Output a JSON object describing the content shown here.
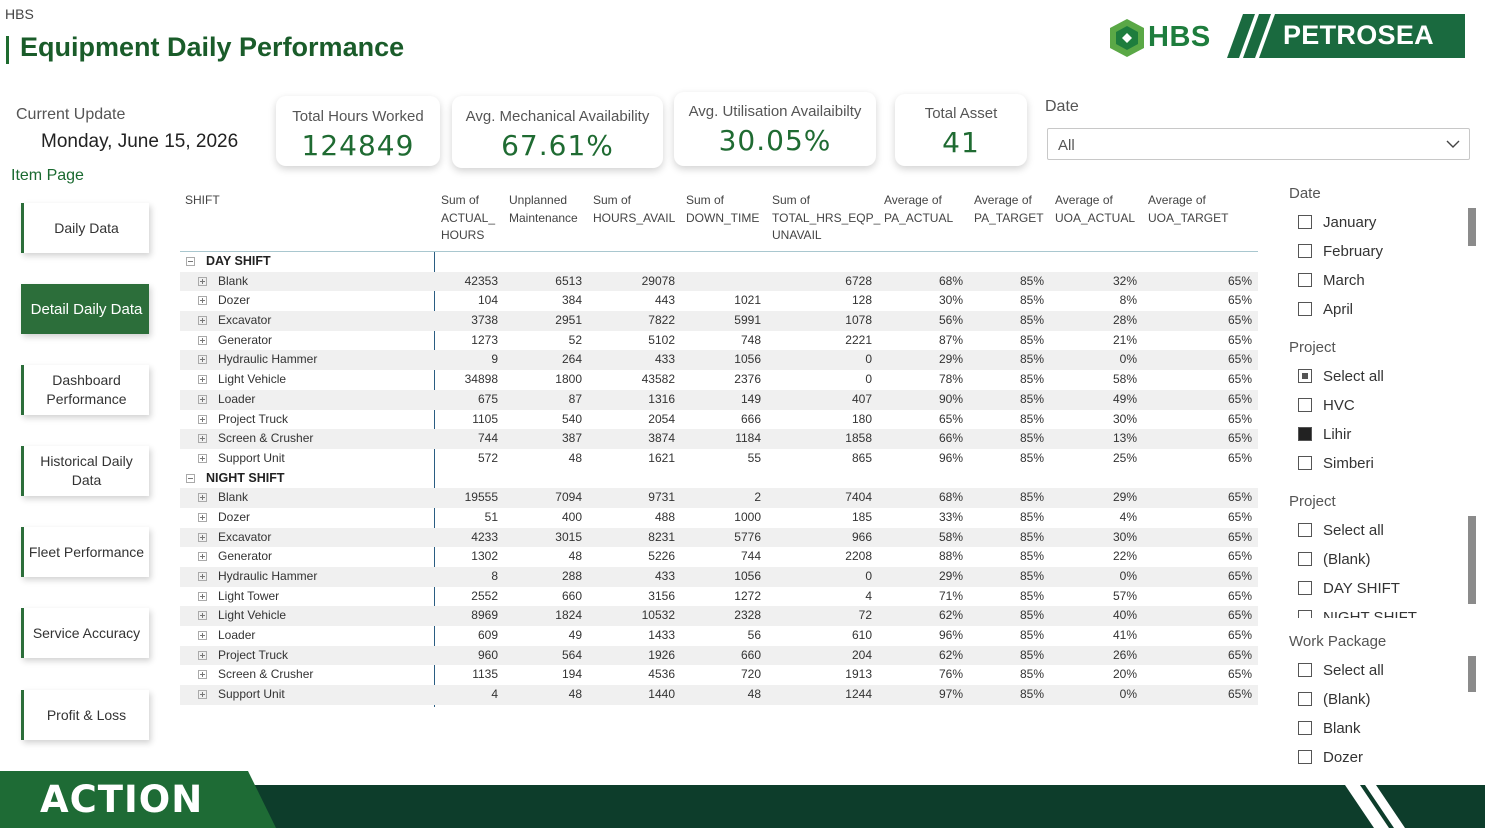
{
  "header": {
    "top_label": "HBS",
    "title": "Equipment Daily Performance",
    "logo_hbs": "HBS",
    "logo_petrosea": "PETROSEA",
    "footer_logo": "ACTION"
  },
  "current_update": {
    "label": "Current Update",
    "value": "Monday, June 15, 2026"
  },
  "kpis": [
    {
      "label": "Total Hours Worked",
      "value": "124849"
    },
    {
      "label": "Avg. Mechanical Availability",
      "value": "67.61%"
    },
    {
      "label": "Avg. Utilisation Availaibilty",
      "value": "30.05%"
    },
    {
      "label": "Total Asset",
      "value": "41"
    }
  ],
  "date_filter": {
    "label": "Date",
    "value": "All",
    "icon": "chevron-down-icon"
  },
  "nav": {
    "heading": "Item Page",
    "items": [
      {
        "label": "Daily Data"
      },
      {
        "label": "Detail Daily Data"
      },
      {
        "label": "Dashboard Performance"
      },
      {
        "label": "Historical Daily Data"
      },
      {
        "label": "Fleet Performance"
      },
      {
        "label": "Service Accuracy"
      },
      {
        "label": "Profit & Loss"
      }
    ]
  },
  "table": {
    "columns": [
      "SHIFT",
      "Sum of ACTUAL_ HOURS",
      "Unplanned Maintenance",
      "Sum of HOURS_AVAIL",
      "Sum of DOWN_TIME",
      "Sum of TOTAL_HRS_EQP_ UNAVAIL",
      "Average of PA_ACTUAL",
      "Average of PA_TARGET",
      "Average of UOA_ACTUAL",
      "Average of UOA_TARGET"
    ],
    "groups": [
      {
        "name": "DAY SHIFT",
        "rows": [
          [
            "Blank",
            "42353",
            "6513",
            "29078",
            "",
            "6728",
            "68%",
            "85%",
            "32%",
            "65%"
          ],
          [
            "Dozer",
            "104",
            "384",
            "443",
            "1021",
            "128",
            "30%",
            "85%",
            "8%",
            "65%"
          ],
          [
            "Excavator",
            "3738",
            "2951",
            "7822",
            "5991",
            "1078",
            "56%",
            "85%",
            "28%",
            "65%"
          ],
          [
            "Generator",
            "1273",
            "52",
            "5102",
            "748",
            "2221",
            "87%",
            "85%",
            "21%",
            "65%"
          ],
          [
            "Hydraulic Hammer",
            "9",
            "264",
            "433",
            "1056",
            "0",
            "29%",
            "85%",
            "0%",
            "65%"
          ],
          [
            "Light Vehicle",
            "34898",
            "1800",
            "43582",
            "2376",
            "0",
            "78%",
            "85%",
            "58%",
            "65%"
          ],
          [
            "Loader",
            "675",
            "87",
            "1316",
            "149",
            "407",
            "90%",
            "85%",
            "49%",
            "65%"
          ],
          [
            "Project Truck",
            "1105",
            "540",
            "2054",
            "666",
            "180",
            "65%",
            "85%",
            "30%",
            "65%"
          ],
          [
            "Screen & Crusher",
            "744",
            "387",
            "3874",
            "1184",
            "1858",
            "66%",
            "85%",
            "13%",
            "65%"
          ],
          [
            "Support Unit",
            "572",
            "48",
            "1621",
            "55",
            "865",
            "96%",
            "85%",
            "25%",
            "65%"
          ]
        ]
      },
      {
        "name": "NIGHT SHIFT",
        "rows": [
          [
            "Blank",
            "19555",
            "7094",
            "9731",
            "2",
            "7404",
            "68%",
            "85%",
            "29%",
            "65%"
          ],
          [
            "Dozer",
            "51",
            "400",
            "488",
            "1000",
            "185",
            "33%",
            "85%",
            "4%",
            "65%"
          ],
          [
            "Excavator",
            "4233",
            "3015",
            "8231",
            "5776",
            "966",
            "58%",
            "85%",
            "30%",
            "65%"
          ],
          [
            "Generator",
            "1302",
            "48",
            "5226",
            "744",
            "2208",
            "88%",
            "85%",
            "22%",
            "65%"
          ],
          [
            "Hydraulic Hammer",
            "8",
            "288",
            "433",
            "1056",
            "0",
            "29%",
            "85%",
            "0%",
            "65%"
          ],
          [
            "Light Tower",
            "2552",
            "660",
            "3156",
            "1272",
            "4",
            "71%",
            "85%",
            "57%",
            "65%"
          ],
          [
            "Light Vehicle",
            "8969",
            "1824",
            "10532",
            "2328",
            "72",
            "62%",
            "85%",
            "40%",
            "65%"
          ],
          [
            "Loader",
            "609",
            "49",
            "1433",
            "56",
            "610",
            "96%",
            "85%",
            "41%",
            "65%"
          ],
          [
            "Project Truck",
            "960",
            "564",
            "1926",
            "660",
            "204",
            "62%",
            "85%",
            "26%",
            "65%"
          ],
          [
            "Screen & Crusher",
            "1135",
            "194",
            "4536",
            "720",
            "1913",
            "76%",
            "85%",
            "20%",
            "65%"
          ],
          [
            "Support Unit",
            "4",
            "48",
            "1440",
            "48",
            "1244",
            "97%",
            "85%",
            "0%",
            "65%"
          ]
        ]
      }
    ]
  },
  "slicers": [
    {
      "title": "Date",
      "items": [
        {
          "label": "January",
          "state": "unchecked"
        },
        {
          "label": "February",
          "state": "unchecked"
        },
        {
          "label": "March",
          "state": "unchecked"
        },
        {
          "label": "April",
          "state": "unchecked"
        }
      ]
    },
    {
      "title": "Project",
      "items": [
        {
          "label": "Select all",
          "state": "partial"
        },
        {
          "label": "HVC",
          "state": "unchecked"
        },
        {
          "label": "Lihir",
          "state": "checked"
        },
        {
          "label": "Simberi",
          "state": "unchecked"
        }
      ]
    },
    {
      "title": "Project",
      "items": [
        {
          "label": "Select all",
          "state": "unchecked"
        },
        {
          "label": "(Blank)",
          "state": "unchecked"
        },
        {
          "label": "DAY SHIFT",
          "state": "unchecked"
        },
        {
          "label": "NIGHT SHIFT",
          "state": "unchecked"
        }
      ]
    },
    {
      "title": "Work Package",
      "items": [
        {
          "label": "Select all",
          "state": "unchecked"
        },
        {
          "label": "(Blank)",
          "state": "unchecked"
        },
        {
          "label": "Blank",
          "state": "unchecked"
        },
        {
          "label": "Dozer",
          "state": "unchecked"
        }
      ]
    }
  ],
  "colors": {
    "brand_green": "#1a5c2a",
    "button_green": "#2c6e3a",
    "footer_dark": "#0d3d2b"
  }
}
